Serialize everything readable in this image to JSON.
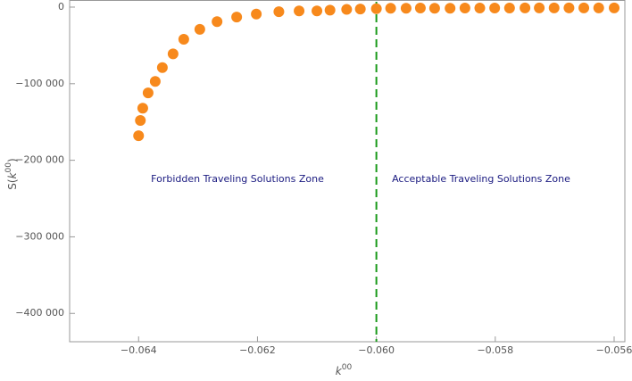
{
  "chart_data": {
    "type": "scatter",
    "x": [
      -0.064,
      -0.06397,
      -0.06393,
      -0.06384,
      -0.06372,
      -0.0636,
      -0.06342,
      -0.06324,
      -0.06297,
      -0.06268,
      -0.06235,
      -0.06202,
      -0.06164,
      -0.0613,
      -0.061,
      -0.06078,
      -0.0605,
      -0.06027,
      -0.06,
      -0.05976,
      -0.0595,
      -0.05926,
      -0.05902,
      -0.05876,
      -0.05851,
      -0.05826,
      -0.05801,
      -0.05776,
      -0.0575,
      -0.05726,
      -0.05701,
      -0.05676,
      -0.05651,
      -0.05626,
      -0.056
    ],
    "series": [
      {
        "color": "#f7891c",
        "values": [
          -168000,
          -148000,
          -132000,
          -112000,
          -97000,
          -79000,
          -61000,
          -42000,
          -29000,
          -19000,
          -13000,
          -9000,
          -6000,
          -5000,
          -5000,
          -4000,
          -3000,
          -2500,
          -2000,
          -1500,
          -1500,
          -1200,
          -1500,
          -1500,
          -1200,
          -1200,
          -1200,
          -1200,
          -1000,
          -1000,
          -1000,
          -1000,
          -1000,
          -1000,
          -1000
        ]
      }
    ],
    "xlim": [
      -0.06516,
      -0.05582
    ],
    "ylim": [
      -437000,
      9300
    ],
    "xticks": [
      {
        "value": -0.064,
        "label": "−0.064"
      },
      {
        "value": -0.062,
        "label": "−0.062"
      },
      {
        "value": -0.06,
        "label": "−0.060"
      },
      {
        "value": -0.058,
        "label": "−0.058"
      },
      {
        "value": -0.056,
        "label": "−0.056"
      }
    ],
    "yticks": [
      0,
      {
        "value": -100000,
        "label": "−100 000"
      },
      {
        "value": -200000,
        "label": "−200 000"
      },
      {
        "value": -300000,
        "label": "−300 000"
      },
      {
        "value": -400000,
        "label": "−400 000"
      }
    ],
    "xlabel": [
      "k",
      "00"
    ],
    "ylabel": [
      "S(",
      "k",
      "00",
      ")"
    ],
    "vline": -0.06,
    "vline_color": "#1a9a1a",
    "annotations": [
      "Forbidden Traveling Solutions Zone",
      "Acceptable Traveling Solutions Zone"
    ]
  }
}
